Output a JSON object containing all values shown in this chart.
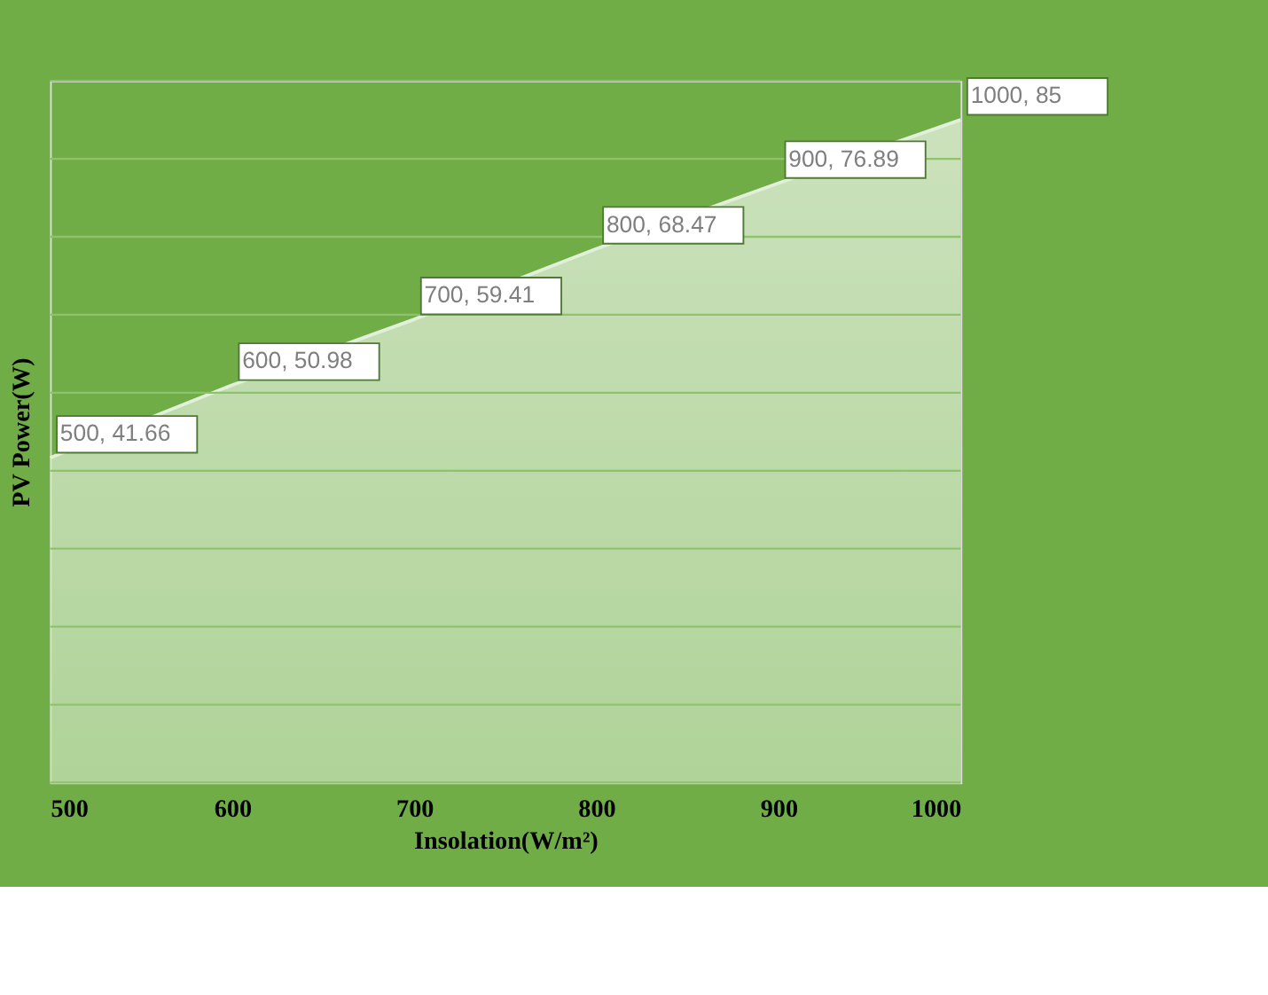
{
  "chart_data": {
    "type": "area",
    "xlabel": "Insolation(W/m²)",
    "ylabel": "PV Power(W)",
    "x": [
      500,
      600,
      700,
      800,
      900,
      1000
    ],
    "series": [
      {
        "color": "#c5e0b4",
        "values": [
          41.66,
          50.98,
          59.41,
          68.47,
          76.89,
          85
        ],
        "value_labels": [
          "500, 41.66",
          "600, 50.98",
          "700, 59.41",
          "800, 68.47",
          "900, 76.89",
          "1000, 85"
        ]
      }
    ],
    "xlim": [
      500,
      1000
    ],
    "xticks": [
      500,
      600,
      700,
      800,
      900,
      1000
    ],
    "ylim": [
      0,
      90
    ],
    "yticks": [
      {
        "value": 0,
        "label": null
      },
      {
        "value": 10,
        "label": null
      },
      {
        "value": 20,
        "label": null
      },
      {
        "value": 30,
        "label": null
      },
      {
        "value": 40,
        "label": null
      },
      {
        "value": 50,
        "label": null
      },
      {
        "value": 60,
        "label": null
      },
      {
        "value": 70,
        "label": null
      },
      {
        "value": 80,
        "label": null
      },
      {
        "value": 90,
        "label": null
      }
    ],
    "grid": "y",
    "tick_labels": "x"
  }
}
